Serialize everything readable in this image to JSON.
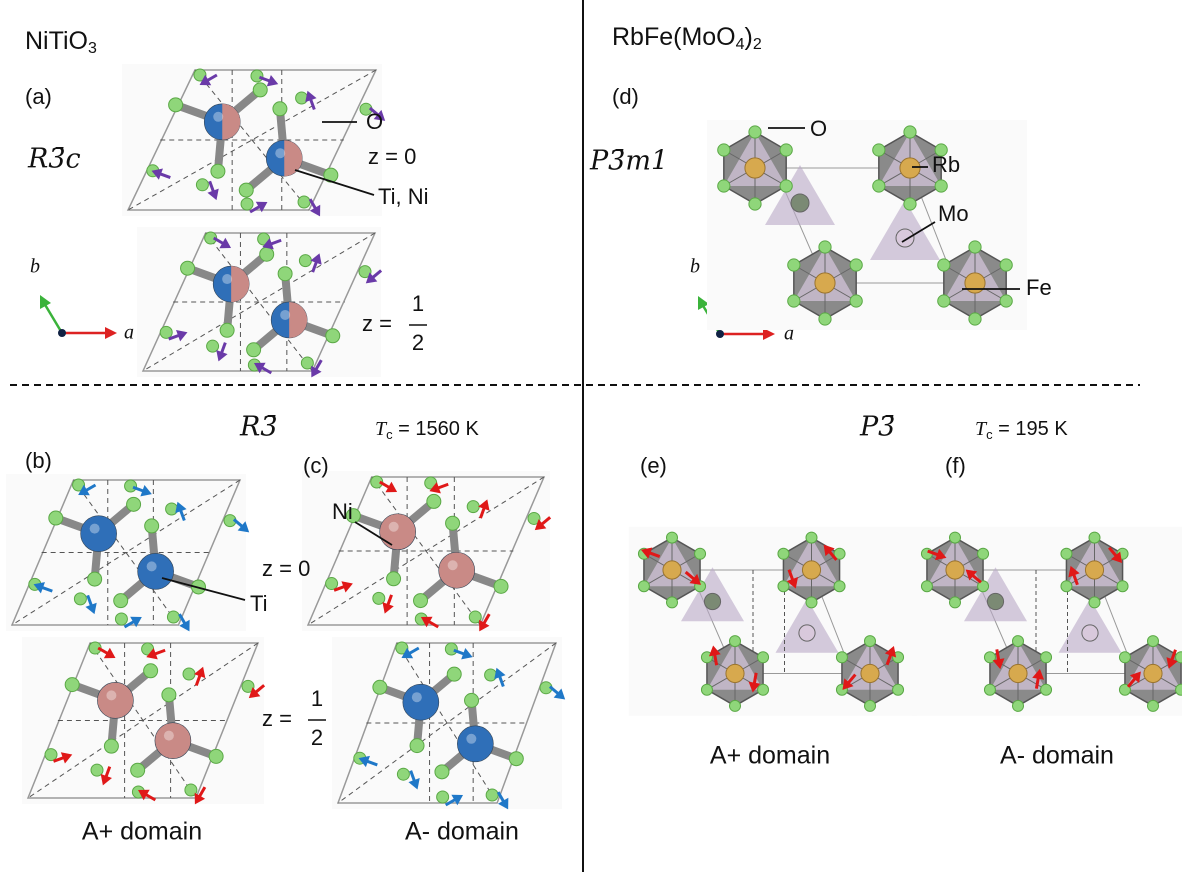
{
  "left": {
    "formula": {
      "base": "NiTiO",
      "sub": "3"
    },
    "panel_a": {
      "label": "(a)",
      "space_group": "R3̄c",
      "oxygen": "O",
      "z_zero": "z = 0",
      "cations": "Ti, Ni",
      "z_half": {
        "prefix": "z =",
        "num": "1",
        "den": "2"
      },
      "axis_b": "b",
      "axis_a": "a"
    },
    "transition": {
      "space_group": "R3̄",
      "tc": {
        "symbol": "T",
        "sub": "c",
        "rest": " = 1560 K"
      }
    },
    "panel_b": {
      "label": "(b)",
      "titanium": "Ti",
      "caption": "A+ domain"
    },
    "panel_c": {
      "label": "(c)",
      "nickel": "Ni",
      "caption": "A- domain"
    },
    "z_zero": "z = 0",
    "z_half": {
      "prefix": "z =",
      "num": "1",
      "den": "2"
    }
  },
  "right": {
    "formula": {
      "base": "RbFe(MoO",
      "sub": "4",
      "close": ")",
      "sub2": "2"
    },
    "panel_d": {
      "label": "(d)",
      "space_group": "P3̄m1",
      "oxygen": "O",
      "rubidium": "Rb",
      "molybdenum": "Mo",
      "iron": "Fe",
      "axis_b": "b",
      "axis_a": "a"
    },
    "transition": {
      "space_group": "P3̄",
      "tc": {
        "symbol": "T",
        "sub": "c",
        "rest": " = 195 K"
      }
    },
    "panel_e": {
      "label": "(e)",
      "caption": "A+ domain"
    },
    "panel_f": {
      "label": "(f)",
      "caption": "A- domain"
    }
  }
}
